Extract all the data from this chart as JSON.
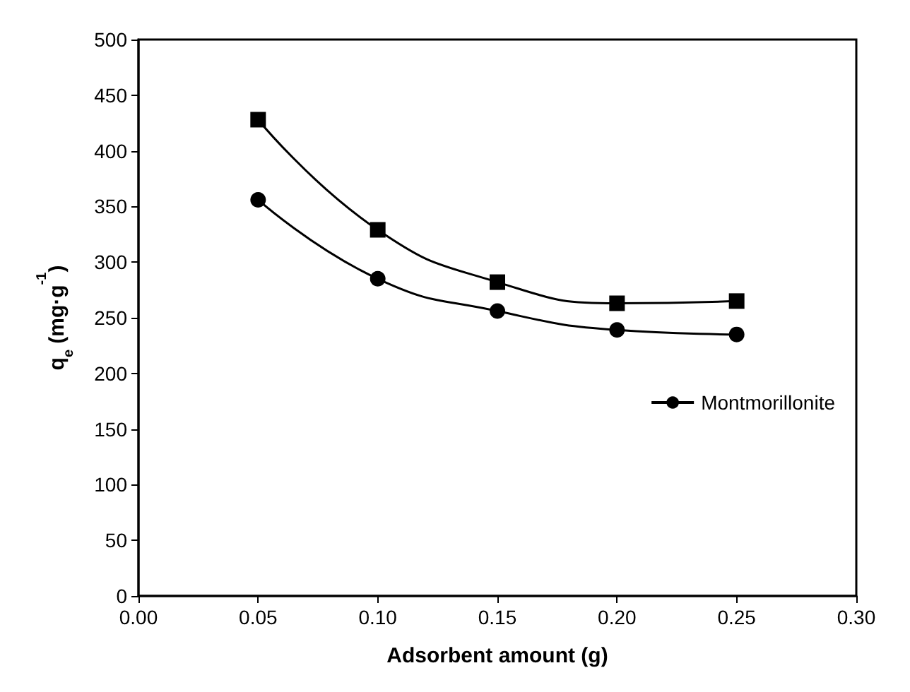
{
  "chart_data": {
    "type": "line",
    "xlabel": "Adsorbent amount (g)",
    "ylabel": "q$_{e}$ (mg·g$^{-1}$)",
    "x": [
      0.05,
      0.1,
      0.15,
      0.2,
      0.25
    ],
    "series": [
      {
        "color": "#000000",
        "marker": "square",
        "values": [
          428,
          329,
          282,
          263,
          265
        ]
      },
      {
        "name": "Montmorillonite",
        "color": "#000000",
        "marker": "circle",
        "values": [
          356,
          285,
          256,
          239,
          235
        ]
      }
    ],
    "xlim": [
      0,
      0.3
    ],
    "xticks": [
      {
        "value": 0,
        "label": "0.00"
      },
      {
        "value": 0.05,
        "label": "0.05"
      },
      {
        "value": 0.1,
        "label": "0.10"
      },
      {
        "value": 0.15,
        "label": "0.15"
      },
      {
        "value": 0.2,
        "label": "0.20"
      },
      {
        "value": 0.25,
        "label": "0.25"
      },
      {
        "value": 0.3,
        "label": "0.30"
      }
    ],
    "ylim": [
      0,
      500
    ],
    "yticks": [
      0,
      50,
      100,
      150,
      200,
      250,
      300,
      350,
      400,
      450,
      500
    ],
    "grid": false,
    "legend": "right",
    "line_style": "solid"
  }
}
